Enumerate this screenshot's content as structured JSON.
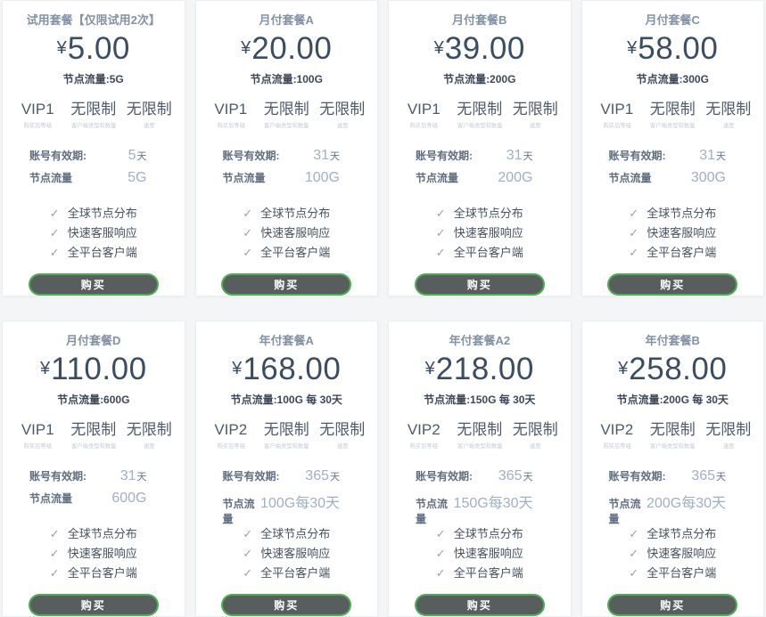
{
  "page": {
    "background": "#f3f5f7",
    "card_background": "#ffffff"
  },
  "labels": {
    "check_icon": "✓",
    "stats_captions": [
      "购买后等级",
      "客户端类型和数量",
      "速度"
    ],
    "validity_label": "账号有效期:",
    "traffic_label": "节点流量",
    "features": [
      "全球节点分布",
      "快速客服响应",
      "全平台客户端"
    ],
    "buy_label": "购买"
  },
  "colors": {
    "accent_green": "#4caf50",
    "button_gray": "#585e5d",
    "title_blue_gray": "#8492a6",
    "price_dark": "#3b4d63",
    "value_light_blue": "#9fb0c6"
  },
  "cards": [
    {
      "title": "试用套餐【仅限试用2次】",
      "currency": "¥",
      "price": "5.00",
      "traffic_summary": "节点流量:5G",
      "vip": "VIP1",
      "limit_clients": "无限制",
      "limit_speed": "无限制",
      "validity_num": "5",
      "validity_unit": "天",
      "traffic_value": "5G"
    },
    {
      "title": "月付套餐A",
      "currency": "¥",
      "price": "20.00",
      "traffic_summary": "节点流量:100G",
      "vip": "VIP1",
      "limit_clients": "无限制",
      "limit_speed": "无限制",
      "validity_num": "31",
      "validity_unit": "天",
      "traffic_value": "100G"
    },
    {
      "title": "月付套餐B",
      "currency": "¥",
      "price": "39.00",
      "traffic_summary": "节点流量:200G",
      "vip": "VIP1",
      "limit_clients": "无限制",
      "limit_speed": "无限制",
      "validity_num": "31",
      "validity_unit": "天",
      "traffic_value": "200G"
    },
    {
      "title": "月付套餐C",
      "currency": "¥",
      "price": "58.00",
      "traffic_summary": "节点流量:300G",
      "vip": "VIP1",
      "limit_clients": "无限制",
      "limit_speed": "无限制",
      "validity_num": "31",
      "validity_unit": "天",
      "traffic_value": "300G"
    },
    {
      "title": "月付套餐D",
      "currency": "¥",
      "price": "110.00",
      "traffic_summary": "节点流量:600G",
      "vip": "VIP1",
      "limit_clients": "无限制",
      "limit_speed": "无限制",
      "validity_num": "31",
      "validity_unit": "天",
      "traffic_value": "600G"
    },
    {
      "title": "年付套餐A",
      "currency": "¥",
      "price": "168.00",
      "traffic_summary": "节点流量:100G 每 30天",
      "vip": "VIP2",
      "limit_clients": "无限制",
      "limit_speed": "无限制",
      "validity_num": "365",
      "validity_unit": "天",
      "traffic_value": "100G每30天"
    },
    {
      "title": "年付套餐A2",
      "currency": "¥",
      "price": "218.00",
      "traffic_summary": "节点流量:150G 每 30天",
      "vip": "VIP2",
      "limit_clients": "无限制",
      "limit_speed": "无限制",
      "validity_num": "365",
      "validity_unit": "天",
      "traffic_value": "150G每30天"
    },
    {
      "title": "年付套餐B",
      "currency": "¥",
      "price": "258.00",
      "traffic_summary": "节点流量:200G 每 30天",
      "vip": "VIP2",
      "limit_clients": "无限制",
      "limit_speed": "无限制",
      "validity_num": "365",
      "validity_unit": "天",
      "traffic_value": "200G每30天"
    }
  ]
}
